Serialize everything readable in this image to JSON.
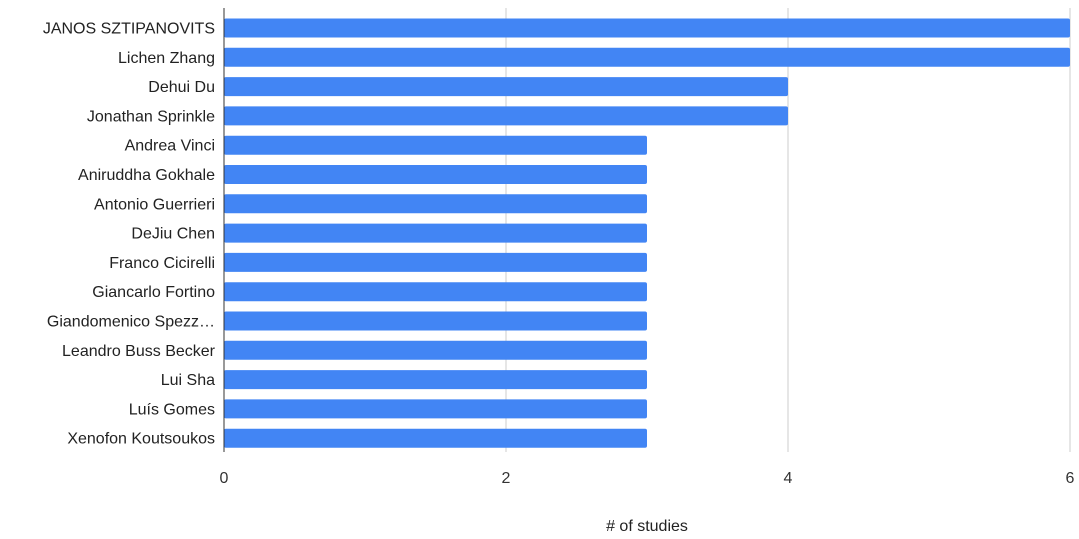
{
  "chart_data": {
    "type": "bar",
    "orientation": "horizontal",
    "categories": [
      "JANOS SZTIPANOVITS",
      "Lichen Zhang",
      "Dehui Du",
      "Jonathan Sprinkle",
      "Andrea Vinci",
      "Aniruddha Gokhale",
      "Antonio Guerrieri",
      "DeJiu Chen",
      "Franco Cicirelli",
      "Giancarlo Fortino",
      "Giandomenico Spezz…",
      "Leandro Buss Becker",
      "Lui Sha",
      "Luís Gomes",
      "Xenofon Koutsoukos"
    ],
    "values": [
      6,
      6,
      4,
      4,
      3,
      3,
      3,
      3,
      3,
      3,
      3,
      3,
      3,
      3,
      3
    ],
    "xlabel": "# of studies",
    "xlim": [
      0,
      6
    ],
    "xticks": [
      "0",
      "2",
      "4",
      "6"
    ],
    "grid": true,
    "bar_color": "#4285F4",
    "grid_color": "#CCCCCC"
  }
}
